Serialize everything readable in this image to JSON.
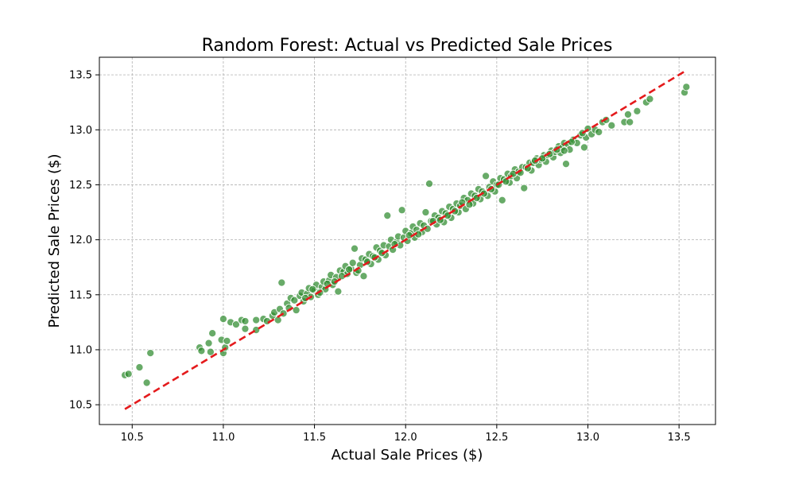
{
  "chart_data": {
    "type": "scatter",
    "title": "Random Forest: Actual vs Predicted Sale Prices",
    "xlabel": "Actual Sale Prices ($)",
    "ylabel": "Predicted Sale Prices ($)",
    "xlim": [
      10.32,
      13.7
    ],
    "ylim": [
      10.32,
      13.66
    ],
    "xticks": [
      "10.5",
      "11.0",
      "11.5",
      "12.0",
      "12.5",
      "13.0",
      "13.5"
    ],
    "yticks": [
      "10.5",
      "11.0",
      "11.5",
      "12.0",
      "12.5",
      "13.0",
      "13.5"
    ],
    "grid": true,
    "reference_line": {
      "x": [
        10.46,
        13.53
      ],
      "y": [
        10.46,
        13.53
      ],
      "style": "dashed",
      "color": "#e41a1c"
    },
    "point_color": "#2e8b2e",
    "series": [
      {
        "values": [
          [
            10.46,
            10.77
          ],
          [
            10.48,
            10.78
          ],
          [
            10.54,
            10.84
          ],
          [
            10.58,
            10.7
          ],
          [
            10.6,
            10.97
          ],
          [
            10.87,
            11.02
          ],
          [
            10.88,
            10.99
          ],
          [
            10.92,
            11.06
          ],
          [
            10.93,
            10.98
          ],
          [
            10.94,
            11.15
          ],
          [
            10.99,
            11.09
          ],
          [
            11.0,
            11.28
          ],
          [
            11.0,
            10.97
          ],
          [
            11.01,
            11.02
          ],
          [
            11.02,
            11.08
          ],
          [
            11.04,
            11.25
          ],
          [
            11.07,
            11.23
          ],
          [
            11.1,
            11.27
          ],
          [
            11.12,
            11.26
          ],
          [
            11.12,
            11.19
          ],
          [
            11.18,
            11.27
          ],
          [
            11.18,
            11.18
          ],
          [
            11.22,
            11.28
          ],
          [
            11.24,
            11.26
          ],
          [
            11.27,
            11.31
          ],
          [
            11.28,
            11.34
          ],
          [
            11.3,
            11.27
          ],
          [
            11.31,
            11.37
          ],
          [
            11.32,
            11.61
          ],
          [
            11.33,
            11.33
          ],
          [
            11.35,
            11.42
          ],
          [
            11.36,
            11.38
          ],
          [
            11.37,
            11.47
          ],
          [
            11.39,
            11.45
          ],
          [
            11.4,
            11.36
          ],
          [
            11.42,
            11.49
          ],
          [
            11.43,
            11.52
          ],
          [
            11.44,
            11.44
          ],
          [
            11.46,
            11.51
          ],
          [
            11.47,
            11.56
          ],
          [
            11.48,
            11.48
          ],
          [
            11.5,
            11.54
          ],
          [
            11.51,
            11.59
          ],
          [
            11.52,
            11.5
          ],
          [
            11.54,
            11.57
          ],
          [
            11.55,
            11.62
          ],
          [
            11.56,
            11.55
          ],
          [
            11.58,
            11.63
          ],
          [
            11.59,
            11.68
          ],
          [
            11.6,
            11.59
          ],
          [
            11.62,
            11.66
          ],
          [
            11.63,
            11.53
          ],
          [
            11.64,
            11.72
          ],
          [
            11.66,
            11.71
          ],
          [
            11.67,
            11.76
          ],
          [
            11.68,
            11.69
          ],
          [
            11.7,
            11.74
          ],
          [
            11.71,
            11.79
          ],
          [
            11.72,
            11.92
          ],
          [
            11.73,
            11.7
          ],
          [
            11.75,
            11.77
          ],
          [
            11.76,
            11.83
          ],
          [
            11.77,
            11.67
          ],
          [
            11.78,
            11.82
          ],
          [
            11.8,
            11.87
          ],
          [
            11.81,
            11.78
          ],
          [
            11.82,
            11.85
          ],
          [
            11.84,
            11.93
          ],
          [
            11.85,
            11.82
          ],
          [
            11.86,
            11.9
          ],
          [
            11.88,
            11.95
          ],
          [
            11.89,
            11.86
          ],
          [
            11.9,
            12.22
          ],
          [
            11.91,
            11.94
          ],
          [
            11.92,
            12.0
          ],
          [
            11.93,
            11.91
          ],
          [
            11.95,
            11.98
          ],
          [
            11.96,
            12.03
          ],
          [
            11.97,
            11.95
          ],
          [
            11.98,
            12.27
          ],
          [
            11.99,
            12.02
          ],
          [
            12.0,
            12.08
          ],
          [
            12.01,
            11.99
          ],
          [
            12.03,
            12.06
          ],
          [
            12.04,
            12.12
          ],
          [
            12.05,
            12.02
          ],
          [
            12.06,
            12.09
          ],
          [
            12.08,
            12.15
          ],
          [
            12.09,
            12.07
          ],
          [
            12.1,
            12.13
          ],
          [
            12.11,
            12.25
          ],
          [
            12.12,
            12.1
          ],
          [
            12.13,
            12.51
          ],
          [
            12.14,
            12.17
          ],
          [
            12.16,
            12.22
          ],
          [
            12.17,
            12.14
          ],
          [
            12.18,
            12.2
          ],
          [
            12.2,
            12.26
          ],
          [
            12.21,
            12.16
          ],
          [
            12.22,
            12.24
          ],
          [
            12.24,
            12.3
          ],
          [
            12.25,
            12.2
          ],
          [
            12.26,
            12.28
          ],
          [
            12.28,
            12.33
          ],
          [
            12.29,
            12.25
          ],
          [
            12.3,
            12.31
          ],
          [
            12.32,
            12.38
          ],
          [
            12.33,
            12.28
          ],
          [
            12.34,
            12.36
          ],
          [
            12.36,
            12.42
          ],
          [
            12.37,
            12.33
          ],
          [
            12.38,
            12.4
          ],
          [
            12.4,
            12.46
          ],
          [
            12.41,
            12.37
          ],
          [
            12.42,
            12.44
          ],
          [
            12.44,
            12.58
          ],
          [
            12.45,
            12.4
          ],
          [
            12.46,
            12.48
          ],
          [
            12.48,
            12.53
          ],
          [
            12.49,
            12.44
          ],
          [
            12.5,
            12.5
          ],
          [
            12.52,
            12.56
          ],
          [
            12.53,
            12.36
          ],
          [
            12.54,
            12.55
          ],
          [
            12.56,
            12.6
          ],
          [
            12.57,
            12.52
          ],
          [
            12.58,
            12.58
          ],
          [
            12.6,
            12.64
          ],
          [
            12.61,
            12.56
          ],
          [
            12.62,
            12.62
          ],
          [
            12.64,
            12.66
          ],
          [
            12.65,
            12.47
          ],
          [
            12.66,
            12.66
          ],
          [
            12.68,
            12.7
          ],
          [
            12.69,
            12.63
          ],
          [
            12.7,
            12.7
          ],
          [
            12.72,
            12.74
          ],
          [
            12.73,
            12.68
          ],
          [
            12.74,
            12.73
          ],
          [
            12.76,
            12.77
          ],
          [
            12.77,
            12.71
          ],
          [
            12.78,
            12.77
          ],
          [
            12.8,
            12.81
          ],
          [
            12.81,
            12.75
          ],
          [
            12.82,
            12.8
          ],
          [
            12.84,
            12.85
          ],
          [
            12.85,
            12.79
          ],
          [
            12.86,
            12.84
          ],
          [
            12.87,
            12.88
          ],
          [
            12.88,
            12.69
          ],
          [
            12.89,
            12.87
          ],
          [
            12.9,
            12.82
          ],
          [
            12.92,
            12.91
          ],
          [
            12.94,
            12.88
          ],
          [
            12.96,
            12.95
          ],
          [
            12.98,
            12.84
          ],
          [
            12.99,
            12.93
          ],
          [
            13.0,
            13.01
          ],
          [
            13.02,
            12.96
          ],
          [
            13.04,
            13.0
          ],
          [
            13.06,
            12.98
          ],
          [
            13.08,
            13.07
          ],
          [
            13.1,
            13.09
          ],
          [
            13.13,
            13.04
          ],
          [
            13.2,
            13.07
          ],
          [
            13.22,
            13.14
          ],
          [
            13.23,
            13.07
          ],
          [
            13.27,
            13.17
          ],
          [
            13.32,
            13.25
          ],
          [
            13.34,
            13.28
          ],
          [
            13.53,
            13.34
          ],
          [
            13.54,
            13.39
          ],
          [
            11.45,
            11.47
          ],
          [
            11.49,
            11.55
          ],
          [
            11.53,
            11.52
          ],
          [
            11.57,
            11.6
          ],
          [
            11.61,
            11.62
          ],
          [
            11.65,
            11.67
          ],
          [
            11.69,
            11.73
          ],
          [
            11.74,
            11.72
          ],
          [
            11.79,
            11.8
          ],
          [
            11.83,
            11.84
          ],
          [
            11.87,
            11.88
          ],
          [
            11.94,
            11.96
          ],
          [
            12.02,
            12.04
          ],
          [
            12.07,
            12.05
          ],
          [
            12.15,
            12.17
          ],
          [
            12.19,
            12.18
          ],
          [
            12.23,
            12.22
          ],
          [
            12.27,
            12.26
          ],
          [
            12.31,
            12.34
          ],
          [
            12.35,
            12.32
          ],
          [
            12.39,
            12.38
          ],
          [
            12.43,
            12.42
          ],
          [
            12.47,
            12.46
          ],
          [
            12.51,
            12.5
          ],
          [
            12.55,
            12.53
          ],
          [
            12.59,
            12.6
          ],
          [
            12.63,
            12.61
          ],
          [
            12.67,
            12.65
          ],
          [
            12.71,
            12.72
          ],
          [
            12.75,
            12.74
          ],
          [
            12.79,
            12.78
          ],
          [
            12.83,
            12.82
          ],
          [
            12.87,
            12.81
          ],
          [
            12.91,
            12.89
          ],
          [
            12.97,
            12.97
          ]
        ]
      }
    ]
  }
}
